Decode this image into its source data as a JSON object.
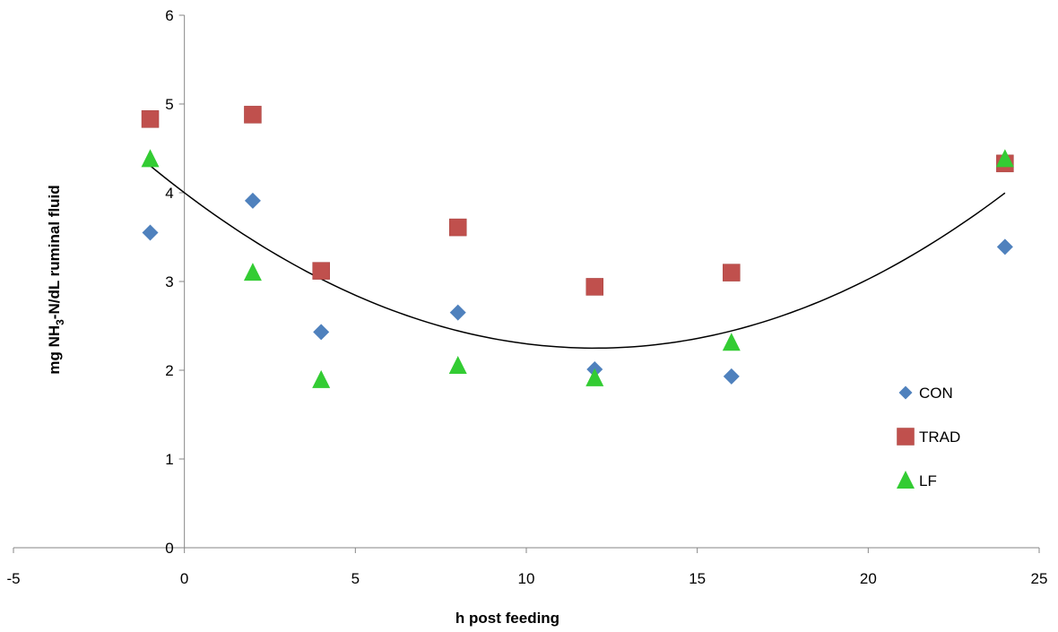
{
  "chart_data": {
    "type": "scatter",
    "title": "",
    "xlabel": "h post feeding",
    "ylabel": {
      "prefix": "mg NH",
      "subscript": "3",
      "suffix": "-N/dL ruminal fluid"
    },
    "xlim": [
      -5,
      25
    ],
    "ylim": [
      0,
      6
    ],
    "xticks": [
      -5,
      0,
      5,
      10,
      15,
      20,
      25
    ],
    "yticks": [
      0,
      1,
      2,
      3,
      4,
      5,
      6
    ],
    "grid": false,
    "legend_position": "right",
    "x": [
      -1,
      2,
      4,
      8,
      12,
      16,
      24
    ],
    "series": [
      {
        "name": "CON",
        "marker": "diamond",
        "color": "#4F81BD",
        "values": [
          3.55,
          3.91,
          2.43,
          2.65,
          2.01,
          1.93,
          3.39
        ]
      },
      {
        "name": "TRAD",
        "marker": "square",
        "color": "#C0504D",
        "values": [
          4.83,
          4.88,
          3.12,
          3.61,
          2.94,
          3.1,
          4.33
        ]
      },
      {
        "name": "LF",
        "marker": "triangle",
        "color": "#33CC33",
        "values": [
          4.38,
          3.1,
          1.89,
          2.05,
          1.91,
          2.31,
          4.38
        ]
      }
    ],
    "trendline": {
      "type": "polynomial-2",
      "color": "#000000",
      "coefficients": [
        4.0,
        -0.2917,
        0.01215
      ],
      "x_range": [
        -1,
        24
      ]
    }
  }
}
